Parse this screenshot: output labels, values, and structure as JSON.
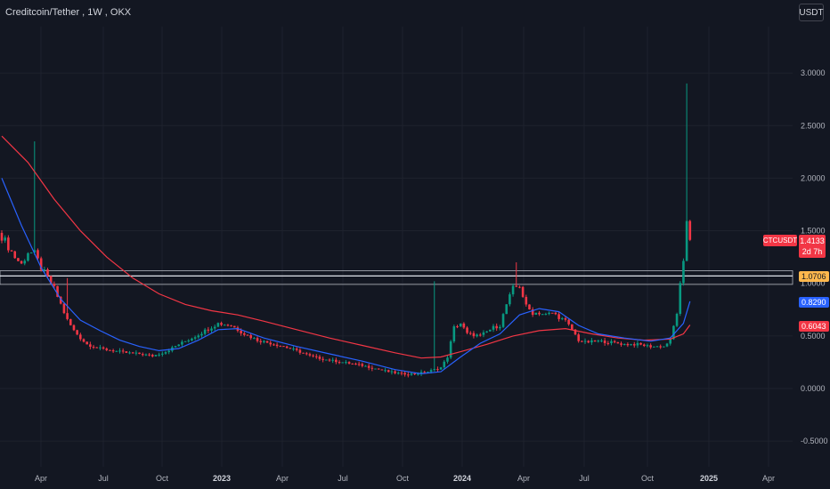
{
  "header": {
    "symbol_name": "Creditcoin/Tether",
    "interval": "1W",
    "exchange": "OKX"
  },
  "currency_label": "USDT",
  "colors": {
    "background": "#131722",
    "up": "#089981",
    "down": "#f23645",
    "ma_fast": "#2962ff",
    "ma_slow": "#f23645",
    "zone": "#2a3a8a",
    "label_orange": "#ffb74d",
    "label_blue": "#2962ff",
    "label_red": "#f23645"
  },
  "price_labels": {
    "ticker": "CTCUSDT",
    "last_price": "1.4133",
    "countdown": "2d 7h",
    "level": "1.0706",
    "ma_fast_value": "0.8290",
    "ma_slow_value": "0.6043"
  },
  "chart_data": {
    "type": "candlestick",
    "y_ticks": [
      "3.0000",
      "2.5000",
      "2.0000",
      "1.5000",
      "1.0000",
      "0.5000",
      "0.0000",
      "-0.5000"
    ],
    "x_ticks": [
      {
        "label": "Apr",
        "major": false
      },
      {
        "label": "Jul",
        "major": false
      },
      {
        "label": "Oct",
        "major": false
      },
      {
        "label": "2023",
        "major": true
      },
      {
        "label": "Apr",
        "major": false
      },
      {
        "label": "Jul",
        "major": false
      },
      {
        "label": "Oct",
        "major": false
      },
      {
        "label": "2024",
        "major": true
      },
      {
        "label": "Apr",
        "major": false
      },
      {
        "label": "Jul",
        "major": false
      },
      {
        "label": "Oct",
        "major": false
      },
      {
        "label": "2025",
        "major": true
      },
      {
        "label": "Apr",
        "major": false
      }
    ],
    "ylim": [
      -0.6,
      3.4
    ],
    "support_zone": [
      0.99,
      1.12
    ],
    "close_path": [
      [
        0,
        1.45
      ],
      [
        2,
        1.35
      ],
      [
        4,
        1.25
      ],
      [
        6,
        1.18
      ],
      [
        8,
        1.3
      ],
      [
        10,
        1.28
      ],
      [
        12,
        1.15
      ],
      [
        14,
        1.05
      ],
      [
        16,
        0.95
      ],
      [
        18,
        0.8
      ],
      [
        20,
        0.65
      ],
      [
        22,
        0.55
      ],
      [
        24,
        0.48
      ],
      [
        26,
        0.42
      ],
      [
        28,
        0.4
      ],
      [
        30,
        0.38
      ],
      [
        34,
        0.36
      ],
      [
        38,
        0.34
      ],
      [
        42,
        0.33
      ],
      [
        46,
        0.31
      ],
      [
        50,
        0.35
      ],
      [
        54,
        0.42
      ],
      [
        58,
        0.48
      ],
      [
        62,
        0.55
      ],
      [
        66,
        0.62
      ],
      [
        70,
        0.6
      ],
      [
        74,
        0.52
      ],
      [
        78,
        0.46
      ],
      [
        82,
        0.43
      ],
      [
        86,
        0.4
      ],
      [
        90,
        0.36
      ],
      [
        94,
        0.31
      ],
      [
        98,
        0.28
      ],
      [
        102,
        0.26
      ],
      [
        106,
        0.24
      ],
      [
        110,
        0.22
      ],
      [
        114,
        0.19
      ],
      [
        118,
        0.16
      ],
      [
        122,
        0.14
      ],
      [
        126,
        0.14
      ],
      [
        130,
        0.16
      ],
      [
        134,
        0.2
      ],
      [
        136,
        0.3
      ],
      [
        138,
        0.58
      ],
      [
        140,
        0.62
      ],
      [
        142,
        0.52
      ],
      [
        146,
        0.5
      ],
      [
        150,
        0.58
      ],
      [
        152,
        0.6
      ],
      [
        154,
        0.8
      ],
      [
        156,
        0.95
      ],
      [
        158,
        0.98
      ],
      [
        160,
        0.78
      ],
      [
        162,
        0.72
      ],
      [
        164,
        0.72
      ],
      [
        166,
        0.7
      ],
      [
        168,
        0.72
      ],
      [
        170,
        0.68
      ],
      [
        172,
        0.64
      ],
      [
        174,
        0.56
      ],
      [
        176,
        0.46
      ],
      [
        178,
        0.44
      ],
      [
        182,
        0.45
      ],
      [
        186,
        0.44
      ],
      [
        190,
        0.42
      ],
      [
        194,
        0.42
      ],
      [
        198,
        0.4
      ],
      [
        202,
        0.4
      ],
      [
        204,
        0.46
      ],
      [
        206,
        0.72
      ],
      [
        207,
        0.98
      ],
      [
        208,
        1.18
      ],
      [
        209,
        1.6
      ],
      [
        210,
        1.4133
      ]
    ],
    "high_spikes": [
      [
        10,
        2.35
      ],
      [
        20,
        1.05
      ],
      [
        132,
        1.02
      ],
      [
        157,
        1.2
      ],
      [
        209,
        2.9
      ]
    ],
    "ma_fast_path": [
      [
        0,
        2.0
      ],
      [
        6,
        1.55
      ],
      [
        12,
        1.15
      ],
      [
        18,
        0.85
      ],
      [
        24,
        0.65
      ],
      [
        30,
        0.55
      ],
      [
        36,
        0.46
      ],
      [
        42,
        0.4
      ],
      [
        48,
        0.36
      ],
      [
        54,
        0.38
      ],
      [
        60,
        0.46
      ],
      [
        66,
        0.56
      ],
      [
        72,
        0.57
      ],
      [
        80,
        0.48
      ],
      [
        90,
        0.4
      ],
      [
        100,
        0.33
      ],
      [
        110,
        0.26
      ],
      [
        120,
        0.18
      ],
      [
        128,
        0.14
      ],
      [
        134,
        0.16
      ],
      [
        140,
        0.3
      ],
      [
        146,
        0.43
      ],
      [
        152,
        0.52
      ],
      [
        158,
        0.7
      ],
      [
        164,
        0.76
      ],
      [
        170,
        0.73
      ],
      [
        176,
        0.6
      ],
      [
        182,
        0.52
      ],
      [
        190,
        0.48
      ],
      [
        198,
        0.45
      ],
      [
        204,
        0.48
      ],
      [
        208,
        0.62
      ],
      [
        210,
        0.829
      ]
    ],
    "ma_slow_path": [
      [
        0,
        2.4
      ],
      [
        8,
        2.15
      ],
      [
        16,
        1.8
      ],
      [
        24,
        1.5
      ],
      [
        32,
        1.25
      ],
      [
        40,
        1.05
      ],
      [
        48,
        0.9
      ],
      [
        56,
        0.8
      ],
      [
        64,
        0.74
      ],
      [
        72,
        0.7
      ],
      [
        80,
        0.64
      ],
      [
        90,
        0.56
      ],
      [
        100,
        0.48
      ],
      [
        110,
        0.41
      ],
      [
        120,
        0.34
      ],
      [
        128,
        0.29
      ],
      [
        134,
        0.3
      ],
      [
        140,
        0.35
      ],
      [
        148,
        0.42
      ],
      [
        156,
        0.5
      ],
      [
        164,
        0.55
      ],
      [
        172,
        0.57
      ],
      [
        180,
        0.52
      ],
      [
        188,
        0.48
      ],
      [
        196,
        0.46
      ],
      [
        204,
        0.47
      ],
      [
        208,
        0.52
      ],
      [
        210,
        0.6043
      ]
    ]
  }
}
